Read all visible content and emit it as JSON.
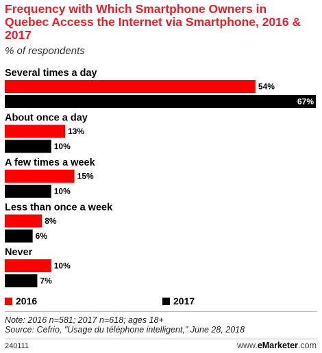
{
  "chart_data": {
    "type": "bar",
    "orientation": "horizontal",
    "title": "Frequency with Which Smartphone Owners in Quebec Access the Internet via Smartphone, 2016 & 2017",
    "subtitle": "% of respondents",
    "categories": [
      "Several times a day",
      "About once a day",
      "A few times a week",
      "Less than once a week",
      "Never"
    ],
    "series": [
      {
        "name": "2016",
        "color": "#ff0000",
        "values": [
          54,
          13,
          15,
          8,
          10
        ]
      },
      {
        "name": "2017",
        "color": "#000000",
        "values": [
          67,
          10,
          10,
          6,
          7
        ]
      }
    ],
    "value_suffix": "%",
    "xlim": [
      0,
      67
    ],
    "grid": false,
    "legend_position": "bottom"
  },
  "footer": {
    "note": "Note: 2016 n=581; 2017 n=618; ages 18+",
    "source": "Source: Cefrio, \"Usage du téléphone intelligent,\" June 28, 2018",
    "chart_id": "240111",
    "brand_prefix": "www.",
    "brand_name": "eMarketer",
    "brand_suffix": ".com"
  }
}
